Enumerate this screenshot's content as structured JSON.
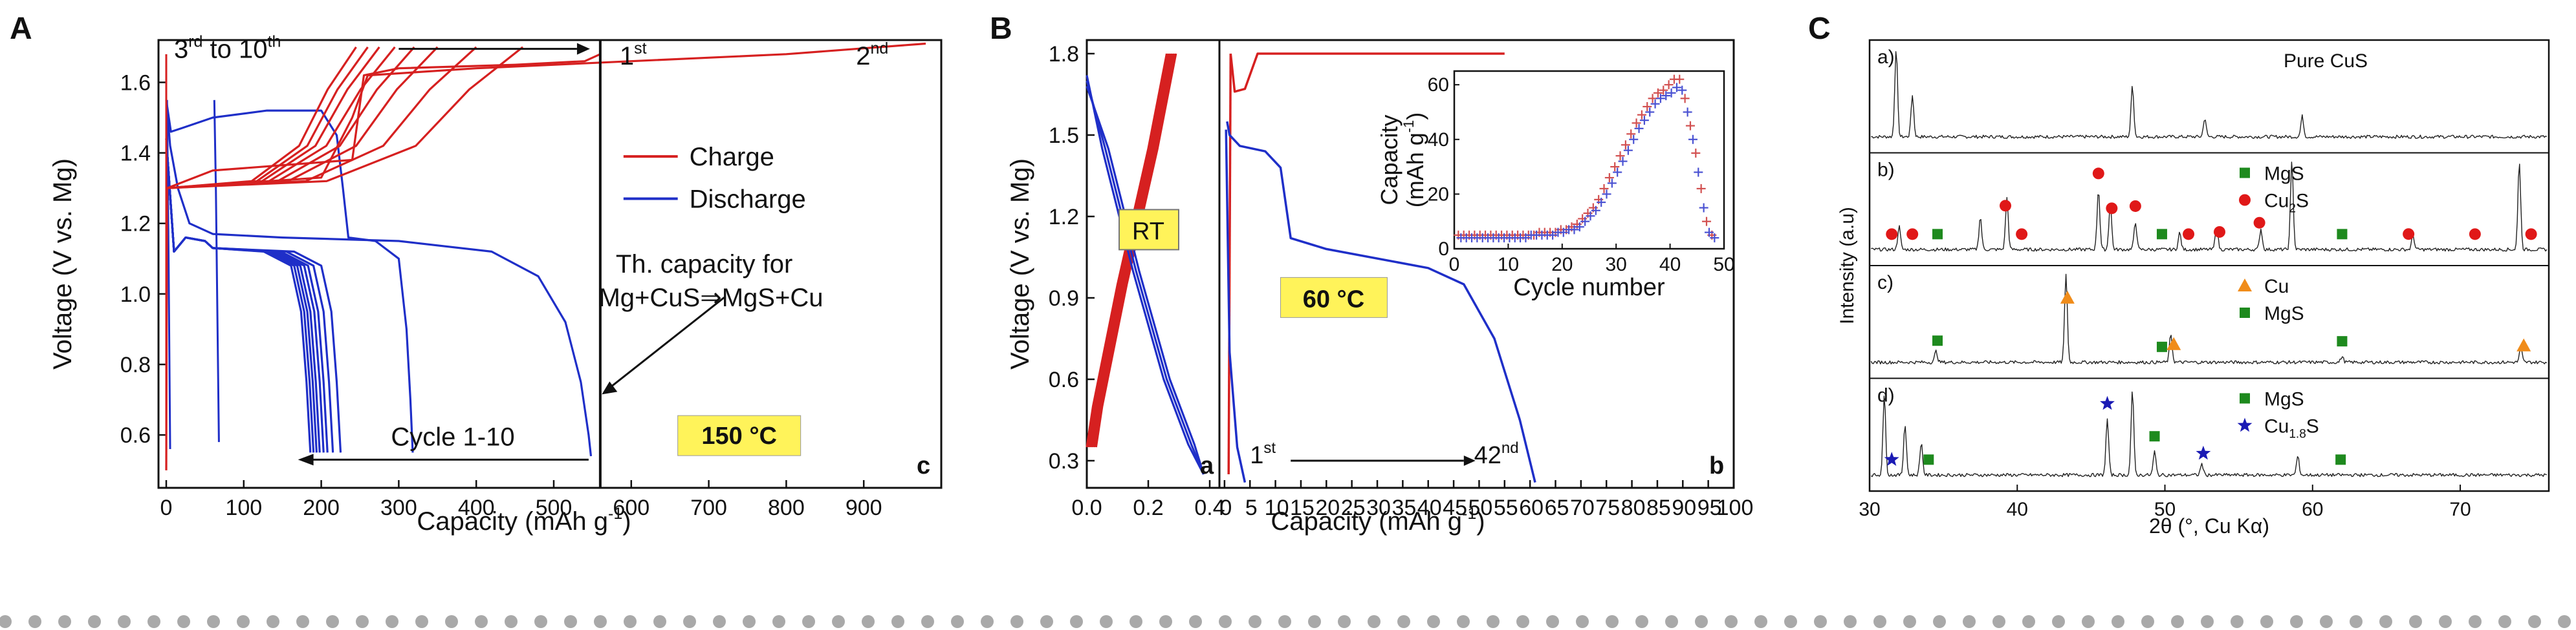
{
  "colors": {
    "charge": "#d62020",
    "discharge": "#1f2fc8",
    "annotation_bg": "#fff35a",
    "green": "#1e8a1e",
    "red_dot": "#e01818",
    "orange": "#f08c1a",
    "navy_star": "#1a1ab4",
    "axis": "#111111",
    "bottom_dots": "#a9a9a9"
  },
  "chart_data": [
    {
      "id": "A",
      "type": "line",
      "panel_label": "A",
      "corner_label": "c",
      "xlabel": "Capacity (mAh g",
      "xlabel_sup": "-1",
      "xlabel_end": ")",
      "ylabel": "Voltage (V vs. Mg)",
      "xlim": [
        -10,
        1000
      ],
      "ylim": [
        0.45,
        1.72
      ],
      "xticks": [
        0,
        100,
        200,
        300,
        400,
        500,
        600,
        700,
        800,
        900
      ],
      "yticks": [
        0.6,
        0.8,
        1.0,
        1.2,
        1.4,
        1.6
      ],
      "legend": [
        {
          "label": "Charge",
          "color": "charge"
        },
        {
          "label": "Discharge",
          "color": "discharge"
        }
      ],
      "annotations": {
        "cycles_a": "3",
        "cycles_a_sup": "rd",
        "cycles_mid": " to 10",
        "cycles_b_sup": "th",
        "first": "1",
        "first_sup": "st",
        "second": "2",
        "second_sup": "nd",
        "th_line1": "Th. capacity for",
        "th_line2": "Mg+CuS⇒MgS+Cu",
        "cycle_range": "Cycle 1-10",
        "temperature": "150 °C"
      },
      "theoretical_capacity": 560,
      "discharge_ends": [
        545,
        320,
        225,
        215,
        208,
        203,
        198,
        194,
        190,
        186
      ],
      "charge_ends": [
        560,
        980,
        460,
        400,
        350,
        320,
        295,
        275,
        260,
        245
      ]
    },
    {
      "id": "B",
      "type": "line",
      "panel_label": "B",
      "corner_label_left": "a",
      "corner_label_right": "b",
      "xlabel": "Capacity (mAh g",
      "xlabel_sup": "-1",
      "xlabel_end": ")",
      "ylabel": "Voltage (V vs. Mg)",
      "left_xlim": [
        0,
        0.4
      ],
      "left_xticks": [
        "0.0",
        "0.2",
        "0.4"
      ],
      "right_xlim": [
        -1,
        100
      ],
      "right_xticks": [
        0,
        5,
        10,
        15,
        20,
        25,
        30,
        35,
        40,
        45,
        50,
        55,
        60,
        65,
        70,
        75,
        80,
        85,
        90,
        95,
        100
      ],
      "ylim": [
        0.2,
        1.85
      ],
      "yticks": [
        0.3,
        0.6,
        0.9,
        1.2,
        1.5,
        1.8
      ],
      "annotations": {
        "rt": "RT",
        "temperature": "60 °C",
        "first": "1",
        "first_sup": "st",
        "last": "42",
        "last_sup": "nd"
      },
      "inset": {
        "ylabel_line1": "Capacity",
        "ylabel_line2": "(mAh g",
        "ylabel_sup": "-1",
        "ylabel_end": ")",
        "xlabel": "Cycle number",
        "xlim": [
          0,
          50
        ],
        "ylim": [
          0,
          65
        ],
        "xticks": [
          0,
          10,
          20,
          30,
          40,
          50
        ],
        "yticks": [
          0,
          20,
          40,
          60
        ],
        "series": [
          {
            "name": "discharge",
            "x": [
              1,
              2,
              3,
              4,
              5,
              6,
              7,
              8,
              9,
              10,
              11,
              12,
              13,
              14,
              15,
              16,
              17,
              18,
              19,
              20,
              21,
              22,
              23,
              24,
              25,
              26,
              27,
              28,
              29,
              30,
              31,
              32,
              33,
              34,
              35,
              36,
              37,
              38,
              39,
              40,
              41,
              42,
              43,
              44,
              45,
              46,
              47,
              48
            ],
            "y": [
              5,
              5,
              5,
              5,
              5,
              5,
              5,
              5,
              5,
              5,
              5,
              5,
              5,
              5,
              5,
              6,
              6,
              6,
              6,
              7,
              7,
              8,
              9,
              11,
              13,
              15,
              18,
              22,
              26,
              30,
              34,
              38,
              42,
              46,
              49,
              52,
              55,
              57,
              58,
              60,
              62,
              62,
              55,
              45,
              35,
              22,
              10,
              5
            ]
          },
          {
            "name": "charge",
            "x": [
              1,
              2,
              3,
              4,
              5,
              6,
              7,
              8,
              9,
              10,
              11,
              12,
              13,
              14,
              15,
              16,
              17,
              18,
              19,
              20,
              21,
              22,
              23,
              24,
              25,
              26,
              27,
              28,
              29,
              30,
              31,
              32,
              33,
              34,
              35,
              36,
              37,
              38,
              39,
              40,
              41,
              42,
              43,
              44,
              45,
              46,
              47,
              48
            ],
            "y": [
              4,
              4,
              4,
              4,
              4,
              4,
              4,
              4,
              4,
              4,
              4,
              4,
              4,
              5,
              5,
              5,
              5,
              5,
              6,
              6,
              7,
              7,
              8,
              10,
              12,
              14,
              17,
              20,
              24,
              28,
              32,
              36,
              40,
              44,
              47,
              50,
              53,
              55,
              56,
              57,
              59,
              58,
              50,
              40,
              28,
              15,
              6,
              4
            ]
          }
        ]
      }
    },
    {
      "id": "C",
      "type": "line",
      "panel_label": "C",
      "xlabel": "2θ (°, Cu Kα)",
      "ylabel": "Intensity (a.u)",
      "xlim": [
        30,
        76
      ],
      "xticks": [
        30,
        40,
        50,
        60,
        70
      ],
      "subplots": [
        {
          "label": "a)",
          "legend": [
            {
              "text": "Pure CuS",
              "marker": "none"
            }
          ],
          "peaks": [
            {
              "x": 31.8,
              "h": 0.95
            },
            {
              "x": 32.9,
              "h": 0.45
            },
            {
              "x": 47.8,
              "h": 0.55
            },
            {
              "x": 52.7,
              "h": 0.2
            },
            {
              "x": 59.3,
              "h": 0.22
            }
          ]
        },
        {
          "label": "b)",
          "legend": [
            {
              "text": "MgS",
              "marker": "square",
              "color": "green"
            },
            {
              "text": "Cu",
              "sub": "2",
              "text_end": "S",
              "marker": "circle",
              "color": "red_dot"
            }
          ],
          "peaks": [
            {
              "x": 32.0,
              "h": 0.25
            },
            {
              "x": 37.5,
              "h": 0.35
            },
            {
              "x": 39.3,
              "h": 0.55
            },
            {
              "x": 45.5,
              "h": 0.65
            },
            {
              "x": 46.3,
              "h": 0.5
            },
            {
              "x": 48.0,
              "h": 0.3
            },
            {
              "x": 51.0,
              "h": 0.18
            },
            {
              "x": 53.5,
              "h": 0.25
            },
            {
              "x": 56.5,
              "h": 0.22
            },
            {
              "x": 58.6,
              "h": 0.95
            },
            {
              "x": 66.8,
              "h": 0.15
            },
            {
              "x": 74.0,
              "h": 0.95
            }
          ],
          "markers": [
            {
              "x": 31.5,
              "type": "circle"
            },
            {
              "x": 32.9,
              "type": "circle"
            },
            {
              "x": 34.6,
              "type": "square"
            },
            {
              "x": 39.2,
              "type": "circle"
            },
            {
              "x": 40.3,
              "type": "circle"
            },
            {
              "x": 45.5,
              "type": "circle"
            },
            {
              "x": 46.4,
              "type": "circle"
            },
            {
              "x": 48.0,
              "type": "circle"
            },
            {
              "x": 49.8,
              "type": "square"
            },
            {
              "x": 51.6,
              "type": "circle"
            },
            {
              "x": 53.7,
              "type": "circle"
            },
            {
              "x": 56.4,
              "type": "circle"
            },
            {
              "x": 62.0,
              "type": "square"
            },
            {
              "x": 66.5,
              "type": "circle"
            },
            {
              "x": 71.0,
              "type": "circle"
            },
            {
              "x": 74.8,
              "type": "circle"
            }
          ]
        },
        {
          "label": "c)",
          "legend": [
            {
              "text": "Cu",
              "marker": "triangle",
              "color": "orange"
            },
            {
              "text": "MgS",
              "marker": "square",
              "color": "green"
            }
          ],
          "peaks": [
            {
              "x": 34.5,
              "h": 0.12
            },
            {
              "x": 43.3,
              "h": 0.95
            },
            {
              "x": 50.4,
              "h": 0.3
            },
            {
              "x": 62.0,
              "h": 0.06
            },
            {
              "x": 74.1,
              "h": 0.15
            }
          ],
          "markers": [
            {
              "x": 34.6,
              "type": "square"
            },
            {
              "x": 43.4,
              "type": "triangle"
            },
            {
              "x": 49.8,
              "type": "square"
            },
            {
              "x": 50.6,
              "type": "triangle"
            },
            {
              "x": 62.0,
              "type": "square"
            },
            {
              "x": 74.3,
              "type": "triangle"
            }
          ]
        },
        {
          "label": "d)",
          "legend": [
            {
              "text": "MgS",
              "marker": "square",
              "color": "green"
            },
            {
              "text": "Cu",
              "sub": "1.8",
              "text_end": "S",
              "marker": "star",
              "color": "navy_star"
            }
          ],
          "peaks": [
            {
              "x": 31.0,
              "h": 0.85
            },
            {
              "x": 32.4,
              "h": 0.55
            },
            {
              "x": 33.5,
              "h": 0.35
            },
            {
              "x": 46.1,
              "h": 0.6
            },
            {
              "x": 47.8,
              "h": 0.9
            },
            {
              "x": 49.3,
              "h": 0.25
            },
            {
              "x": 52.5,
              "h": 0.12
            },
            {
              "x": 59.0,
              "h": 0.2
            }
          ],
          "markers": [
            {
              "x": 31.5,
              "type": "star"
            },
            {
              "x": 34.0,
              "type": "square"
            },
            {
              "x": 46.1,
              "type": "star"
            },
            {
              "x": 49.3,
              "type": "square"
            },
            {
              "x": 52.6,
              "type": "star"
            },
            {
              "x": 61.9,
              "type": "square"
            }
          ]
        }
      ]
    }
  ]
}
